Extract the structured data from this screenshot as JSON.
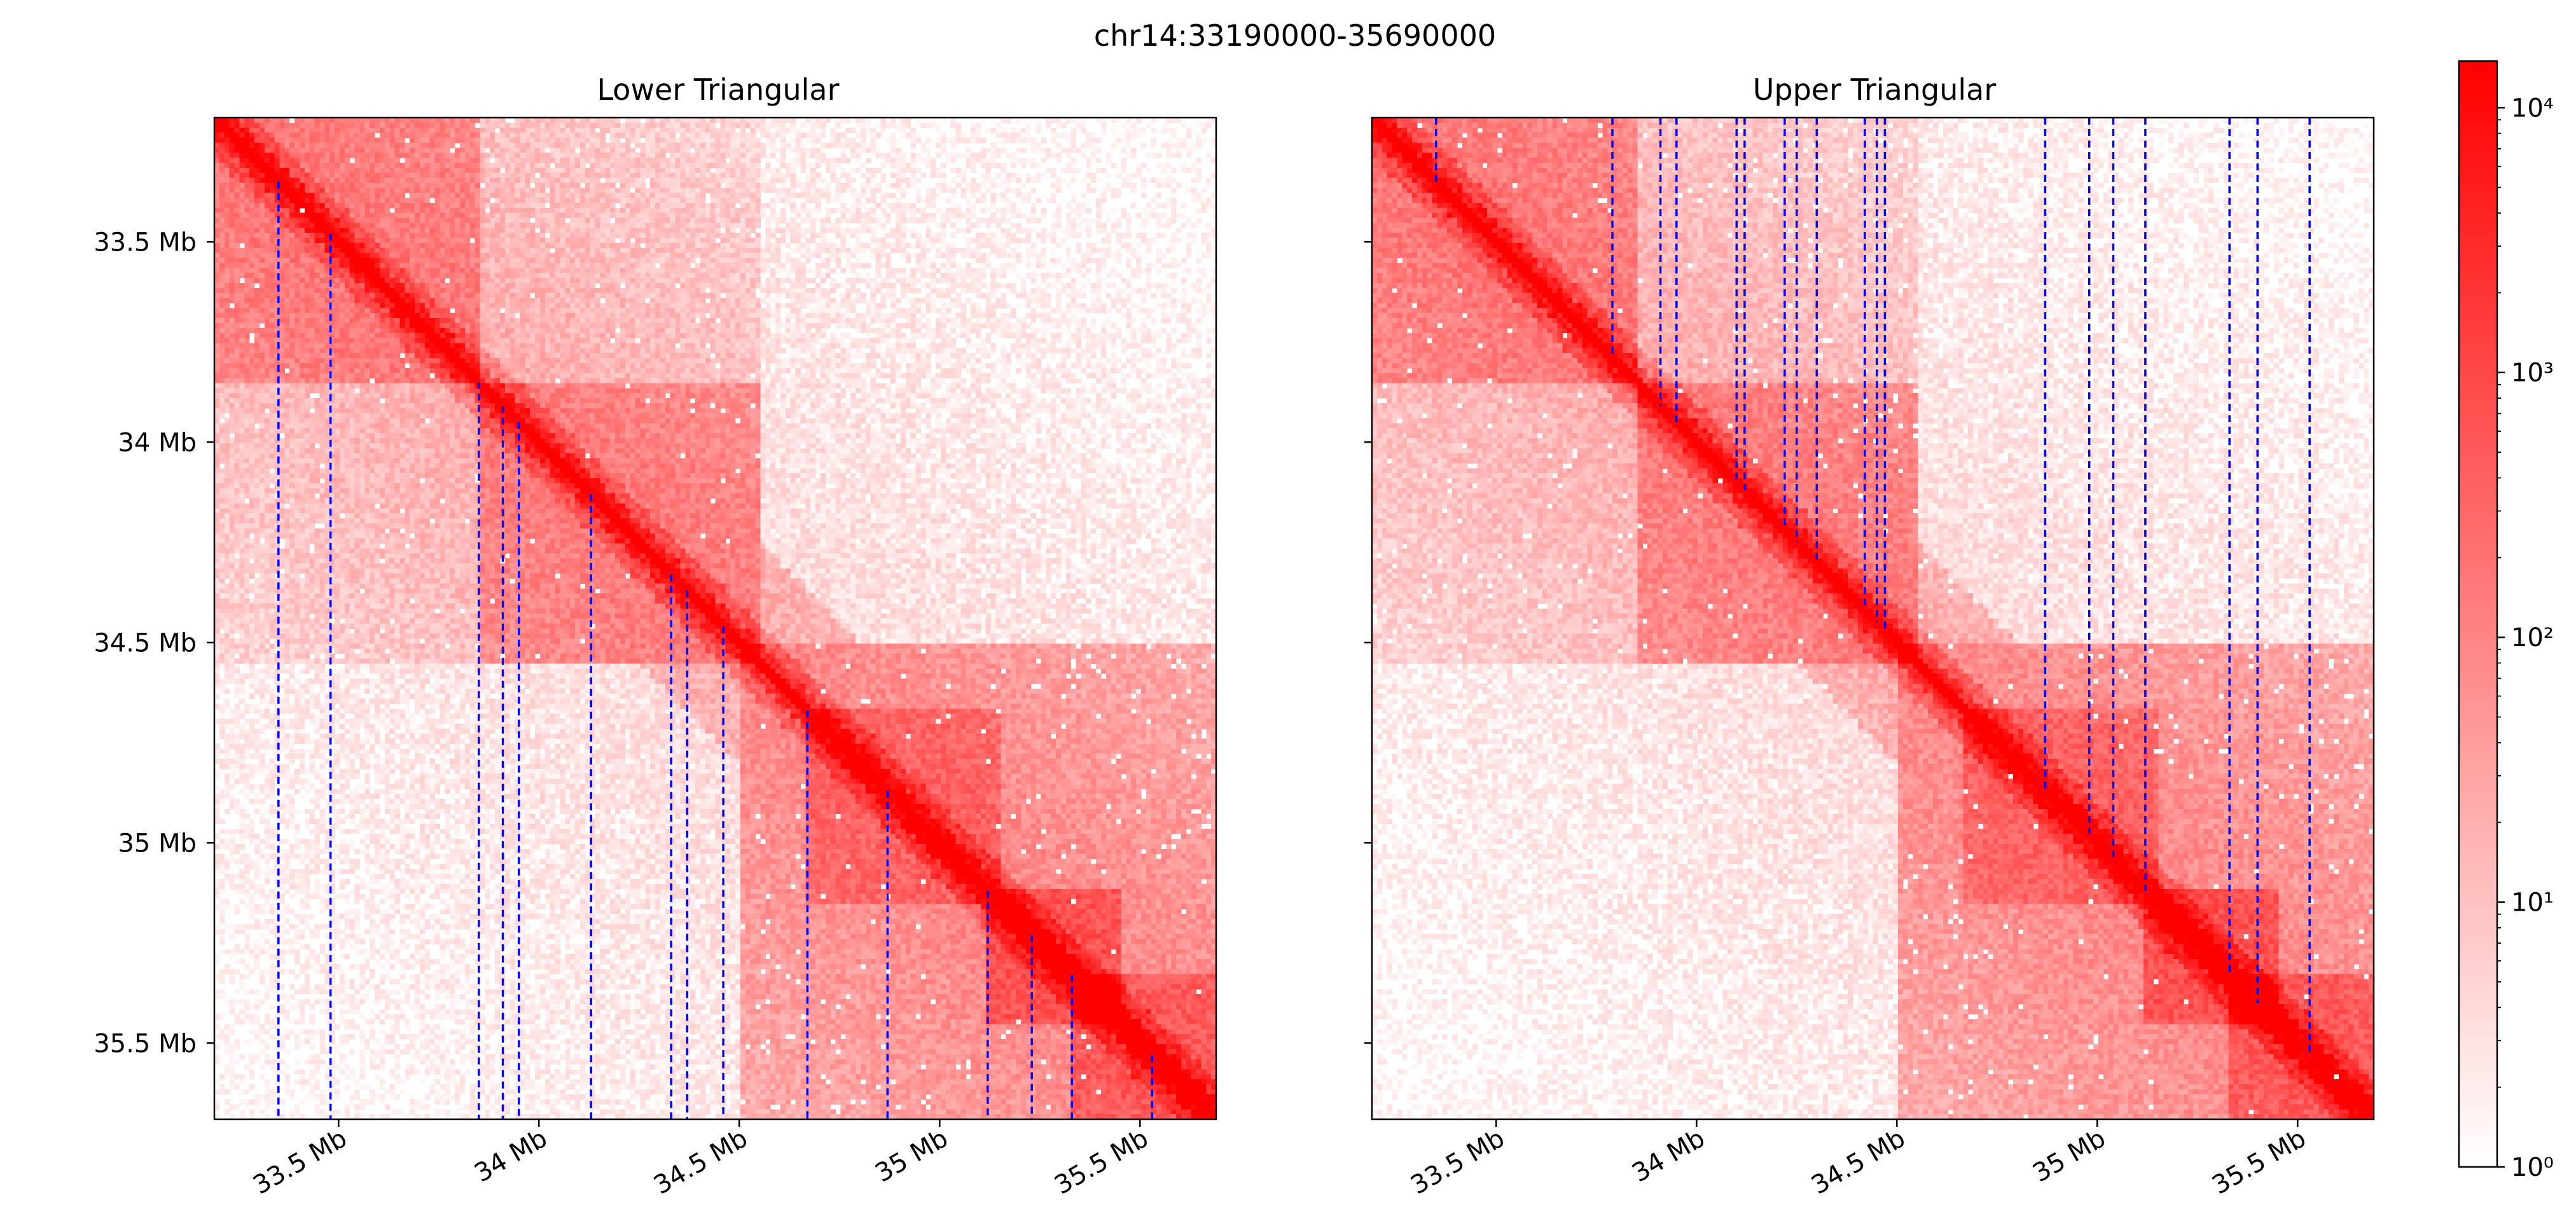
{
  "chart_data": {
    "type": "heatmap",
    "suptitle": "chr14:33190000-35690000",
    "region": {
      "chrom": "chr14",
      "start": 33190000,
      "end": 35690000
    },
    "colormap": {
      "low": "#ffffff",
      "high": "#ff0000",
      "scale": "log"
    },
    "colorbar": {
      "scale": "log",
      "range": [
        1,
        15000
      ],
      "ticks": [
        {
          "value": 1,
          "label": "10⁰"
        },
        {
          "value": 10,
          "label": "10¹"
        },
        {
          "value": 100,
          "label": "10²"
        },
        {
          "value": 1000,
          "label": "10³"
        },
        {
          "value": 10000,
          "label": "10⁴"
        }
      ]
    },
    "ticks": [
      {
        "value": 33500000,
        "label": "33.5 Mb"
      },
      {
        "value": 34000000,
        "label": "34 Mb"
      },
      {
        "value": 34500000,
        "label": "34.5 Mb"
      },
      {
        "value": 35000000,
        "label": "35 Mb"
      },
      {
        "value": 35500000,
        "label": "35.5 Mb"
      }
    ],
    "panels": [
      {
        "title": "Lower Triangular",
        "triangle": "lower",
        "show_ytick_labels": true,
        "boundary_color": "#0000ff",
        "boundaries_mb": [
          33.35,
          33.48,
          33.85,
          33.91,
          33.95,
          34.13,
          34.33,
          34.37,
          34.46,
          34.67,
          34.87,
          35.12,
          35.23,
          35.33,
          35.53
        ]
      },
      {
        "title": "Upper Triangular",
        "triangle": "upper",
        "show_ytick_labels": false,
        "boundary_color": "#0000ff",
        "boundaries_mb": [
          33.35,
          33.79,
          33.91,
          33.95,
          34.1,
          34.12,
          34.22,
          34.25,
          34.3,
          34.42,
          34.45,
          34.47,
          34.87,
          34.98,
          35.04,
          35.12,
          35.33,
          35.4,
          35.53
        ]
      }
    ],
    "tads_mb": [
      {
        "start": 33.19,
        "end": 33.85,
        "strength": 0.6
      },
      {
        "start": 33.85,
        "end": 34.55,
        "strength": 0.55
      },
      {
        "start": 34.5,
        "end": 35.7,
        "strength": 0.4
      },
      {
        "start": 34.67,
        "end": 35.15,
        "strength": 0.45
      },
      {
        "start": 35.12,
        "end": 35.45,
        "strength": 0.65
      },
      {
        "start": 35.33,
        "end": 35.69,
        "strength": 0.55
      }
    ]
  }
}
